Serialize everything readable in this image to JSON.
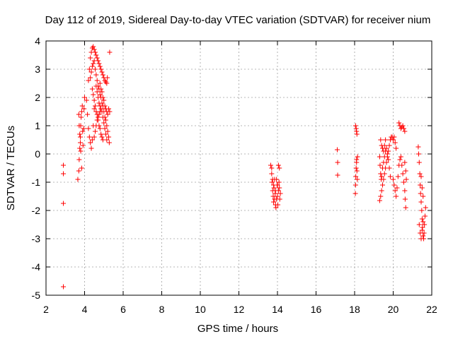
{
  "chart_data": {
    "type": "scatter",
    "title": "Day 112 of 2019, Sidereal Day-to-day VTEC variation (SDTVAR) for receiver nium",
    "xlabel": "GPS time / hours",
    "ylabel": "SDTVAR / TECUs",
    "xlim": [
      2,
      22
    ],
    "ylim": [
      -5,
      4
    ],
    "xticks": [
      2,
      4,
      6,
      8,
      10,
      12,
      14,
      16,
      18,
      20,
      22
    ],
    "yticks": [
      -5,
      -4,
      -3,
      -2,
      -1,
      0,
      1,
      2,
      3,
      4
    ],
    "xtick_labels": [
      "2",
      "4",
      "6",
      "8",
      "10",
      "12",
      "14",
      "16",
      "18",
      "20",
      "22"
    ],
    "ytick_labels": [
      "-5",
      "-4",
      "-3",
      "-2",
      "-1",
      "0",
      "1",
      "2",
      "3",
      "4"
    ],
    "grid": true,
    "marker": "plus",
    "color": "#ff0000",
    "series": [
      {
        "name": "SDTVAR",
        "points": [
          [
            2.9,
            -0.4
          ],
          [
            2.9,
            -0.7
          ],
          [
            2.9,
            -1.75
          ],
          [
            2.9,
            -4.7
          ],
          [
            3.65,
            -0.9
          ],
          [
            3.7,
            -0.6
          ],
          [
            3.72,
            -0.2
          ],
          [
            3.75,
            0.2
          ],
          [
            3.78,
            0.6
          ],
          [
            3.8,
            1.0
          ],
          [
            3.82,
            1.3
          ],
          [
            3.85,
            1.5
          ],
          [
            3.88,
            1.7
          ],
          [
            3.9,
            0.8
          ],
          [
            3.92,
            0.3
          ],
          [
            3.95,
            0.9
          ],
          [
            3.97,
            1.6
          ],
          [
            4.0,
            2.0
          ],
          [
            3.7,
            1.4
          ],
          [
            3.72,
            1.0
          ],
          [
            3.75,
            0.7
          ],
          [
            3.78,
            0.4
          ],
          [
            3.8,
            0.1
          ],
          [
            3.85,
            -0.5
          ],
          [
            4.1,
            1.9
          ],
          [
            4.15,
            1.4
          ],
          [
            4.2,
            0.9
          ],
          [
            4.25,
            0.6
          ],
          [
            4.3,
            0.4
          ],
          [
            4.35,
            0.2
          ],
          [
            4.4,
            0.5
          ],
          [
            4.45,
            1.0
          ],
          [
            4.5,
            1.6
          ],
          [
            4.2,
            2.6
          ],
          [
            4.25,
            3.0
          ],
          [
            4.3,
            3.4
          ],
          [
            4.35,
            3.6
          ],
          [
            4.4,
            3.75
          ],
          [
            4.45,
            3.8
          ],
          [
            4.5,
            3.7
          ],
          [
            4.55,
            3.6
          ],
          [
            4.6,
            3.5
          ],
          [
            4.65,
            3.4
          ],
          [
            4.7,
            3.3
          ],
          [
            4.75,
            3.2
          ],
          [
            4.8,
            3.1
          ],
          [
            4.85,
            3.0
          ],
          [
            4.9,
            2.9
          ],
          [
            4.95,
            2.8
          ],
          [
            5.0,
            2.7
          ],
          [
            5.05,
            2.6
          ],
          [
            5.1,
            2.55
          ],
          [
            5.15,
            2.5
          ],
          [
            5.18,
            2.7
          ],
          [
            4.3,
            2.7
          ],
          [
            4.35,
            2.9
          ],
          [
            4.4,
            3.1
          ],
          [
            4.45,
            3.2
          ],
          [
            4.5,
            3.3
          ],
          [
            4.55,
            3.0
          ],
          [
            4.6,
            2.8
          ],
          [
            4.65,
            2.6
          ],
          [
            4.7,
            2.4
          ],
          [
            4.75,
            2.3
          ],
          [
            4.8,
            2.1
          ],
          [
            4.85,
            2.0
          ],
          [
            4.9,
            1.8
          ],
          [
            4.95,
            1.7
          ],
          [
            5.0,
            1.5
          ],
          [
            5.05,
            1.3
          ],
          [
            5.1,
            1.2
          ],
          [
            5.15,
            1.0
          ],
          [
            5.2,
            0.8
          ],
          [
            5.25,
            0.6
          ],
          [
            5.28,
            0.4
          ],
          [
            4.4,
            2.3
          ],
          [
            4.45,
            2.1
          ],
          [
            4.5,
            1.9
          ],
          [
            4.55,
            1.7
          ],
          [
            4.6,
            1.5
          ],
          [
            4.65,
            1.4
          ],
          [
            4.7,
            1.2
          ],
          [
            4.75,
            1.0
          ],
          [
            4.8,
            0.9
          ],
          [
            4.85,
            0.7
          ],
          [
            4.9,
            0.6
          ],
          [
            4.95,
            0.5
          ],
          [
            4.6,
            2.4
          ],
          [
            4.65,
            2.2
          ],
          [
            4.7,
            2.0
          ],
          [
            4.75,
            1.8
          ],
          [
            4.8,
            1.7
          ],
          [
            4.85,
            1.6
          ],
          [
            4.9,
            1.5
          ],
          [
            4.95,
            1.3
          ],
          [
            5.0,
            1.1
          ],
          [
            5.05,
            0.9
          ],
          [
            5.1,
            0.7
          ],
          [
            5.15,
            0.5
          ],
          [
            4.8,
            2.5
          ],
          [
            4.85,
            2.3
          ],
          [
            4.9,
            2.2
          ],
          [
            4.95,
            2.0
          ],
          [
            5.0,
            1.9
          ],
          [
            5.05,
            1.7
          ],
          [
            5.1,
            1.6
          ],
          [
            5.15,
            1.5
          ],
          [
            5.2,
            1.4
          ],
          [
            5.25,
            1.6
          ],
          [
            5.3,
            1.5
          ],
          [
            4.5,
            0.6
          ],
          [
            4.55,
            0.8
          ],
          [
            4.6,
            1.0
          ],
          [
            4.65,
            1.2
          ],
          [
            4.7,
            1.3
          ],
          [
            4.75,
            1.4
          ],
          [
            4.8,
            1.5
          ],
          [
            5.3,
            3.6
          ],
          [
            13.65,
            -0.4
          ],
          [
            13.7,
            -0.7
          ],
          [
            13.72,
            -1.0
          ],
          [
            13.75,
            -1.3
          ],
          [
            13.78,
            -1.5
          ],
          [
            13.8,
            -1.7
          ],
          [
            13.82,
            -1.2
          ],
          [
            13.85,
            -0.9
          ],
          [
            13.88,
            -1.4
          ],
          [
            13.9,
            -1.8
          ],
          [
            13.92,
            -1.9
          ],
          [
            13.95,
            -1.6
          ],
          [
            13.98,
            -1.1
          ],
          [
            14.0,
            -1.5
          ],
          [
            14.02,
            -1.8
          ],
          [
            14.05,
            -1.3
          ],
          [
            14.08,
            -1.0
          ],
          [
            14.1,
            -1.2
          ],
          [
            14.12,
            -1.6
          ],
          [
            14.15,
            -1.4
          ],
          [
            14.05,
            -0.4
          ],
          [
            14.1,
            -0.5
          ],
          [
            13.7,
            -0.5
          ],
          [
            13.75,
            -0.9
          ],
          [
            13.8,
            -1.1
          ],
          [
            13.85,
            -1.6
          ],
          [
            13.9,
            -1.3
          ],
          [
            13.95,
            -0.9
          ],
          [
            14.0,
            -1.1
          ],
          [
            17.1,
            0.15
          ],
          [
            17.12,
            -0.3
          ],
          [
            17.12,
            -0.75
          ],
          [
            18.05,
            1.0
          ],
          [
            18.08,
            0.9
          ],
          [
            18.1,
            0.8
          ],
          [
            18.12,
            0.7
          ],
          [
            18.15,
            -0.1
          ],
          [
            18.1,
            -0.2
          ],
          [
            18.08,
            -0.5
          ],
          [
            18.06,
            -0.8
          ],
          [
            18.05,
            -1.1
          ],
          [
            18.04,
            -1.4
          ],
          [
            18.1,
            -0.3
          ],
          [
            18.12,
            -0.6
          ],
          [
            18.14,
            -0.9
          ],
          [
            19.3,
            -1.65
          ],
          [
            19.35,
            -1.5
          ],
          [
            19.4,
            -1.3
          ],
          [
            19.45,
            -1.1
          ],
          [
            19.5,
            -0.9
          ],
          [
            19.55,
            -0.7
          ],
          [
            19.6,
            -0.5
          ],
          [
            19.65,
            -0.3
          ],
          [
            19.7,
            -0.1
          ],
          [
            19.75,
            0.1
          ],
          [
            19.8,
            0.3
          ],
          [
            19.85,
            0.5
          ],
          [
            19.9,
            0.6
          ],
          [
            19.95,
            0.6
          ],
          [
            19.3,
            -0.1
          ],
          [
            19.32,
            -0.4
          ],
          [
            19.35,
            -0.7
          ],
          [
            19.38,
            -0.9
          ],
          [
            19.4,
            -0.8
          ],
          [
            19.45,
            -0.5
          ],
          [
            19.5,
            -0.3
          ],
          [
            19.55,
            -0.1
          ],
          [
            19.6,
            0.1
          ],
          [
            19.65,
            0.2
          ],
          [
            19.7,
            0.0
          ],
          [
            19.75,
            -0.2
          ],
          [
            19.8,
            -0.5
          ],
          [
            19.85,
            -0.8
          ],
          [
            19.35,
            0.5
          ],
          [
            19.4,
            0.3
          ],
          [
            19.45,
            0.2
          ],
          [
            19.5,
            0.1
          ],
          [
            19.55,
            0.3
          ],
          [
            19.6,
            0.5
          ],
          [
            20.0,
            0.5
          ],
          [
            20.05,
            0.6
          ],
          [
            20.1,
            0.4
          ],
          [
            20.15,
            0.2
          ],
          [
            20.0,
            -0.9
          ],
          [
            20.05,
            -1.1
          ],
          [
            20.1,
            -1.3
          ],
          [
            20.15,
            -1.5
          ],
          [
            20.2,
            -1.2
          ],
          [
            20.25,
            -0.8
          ],
          [
            20.3,
            -0.4
          ],
          [
            20.35,
            -0.2
          ],
          [
            20.3,
            1.1
          ],
          [
            20.35,
            1.0
          ],
          [
            20.4,
            0.9
          ],
          [
            20.45,
            0.95
          ],
          [
            20.5,
            1.0
          ],
          [
            20.55,
            0.9
          ],
          [
            20.6,
            0.8
          ],
          [
            20.4,
            -0.1
          ],
          [
            20.45,
            -0.4
          ],
          [
            20.5,
            -0.7
          ],
          [
            20.55,
            -1.0
          ],
          [
            20.6,
            -1.3
          ],
          [
            20.62,
            -1.6
          ],
          [
            20.65,
            -1.9
          ],
          [
            20.6,
            -0.3
          ],
          [
            20.65,
            -0.6
          ],
          [
            20.68,
            -0.9
          ],
          [
            21.3,
            0.25
          ],
          [
            21.32,
            0.0
          ],
          [
            21.35,
            -0.3
          ],
          [
            21.38,
            -0.7
          ],
          [
            21.4,
            -1.1
          ],
          [
            21.42,
            -1.4
          ],
          [
            21.45,
            -1.7
          ],
          [
            21.48,
            -2.0
          ],
          [
            21.5,
            -2.3
          ],
          [
            21.52,
            -2.6
          ],
          [
            21.55,
            -2.9
          ],
          [
            21.58,
            -3.0
          ],
          [
            21.6,
            -2.8
          ],
          [
            21.62,
            -2.5
          ],
          [
            21.65,
            -2.2
          ],
          [
            21.68,
            -1.9
          ],
          [
            21.35,
            -2.5
          ],
          [
            21.4,
            -2.8
          ],
          [
            21.45,
            -3.0
          ],
          [
            21.5,
            -2.7
          ],
          [
            21.55,
            -2.4
          ],
          [
            21.45,
            -0.8
          ],
          [
            21.5,
            -1.2
          ],
          [
            21.55,
            -1.5
          ]
        ]
      }
    ]
  }
}
